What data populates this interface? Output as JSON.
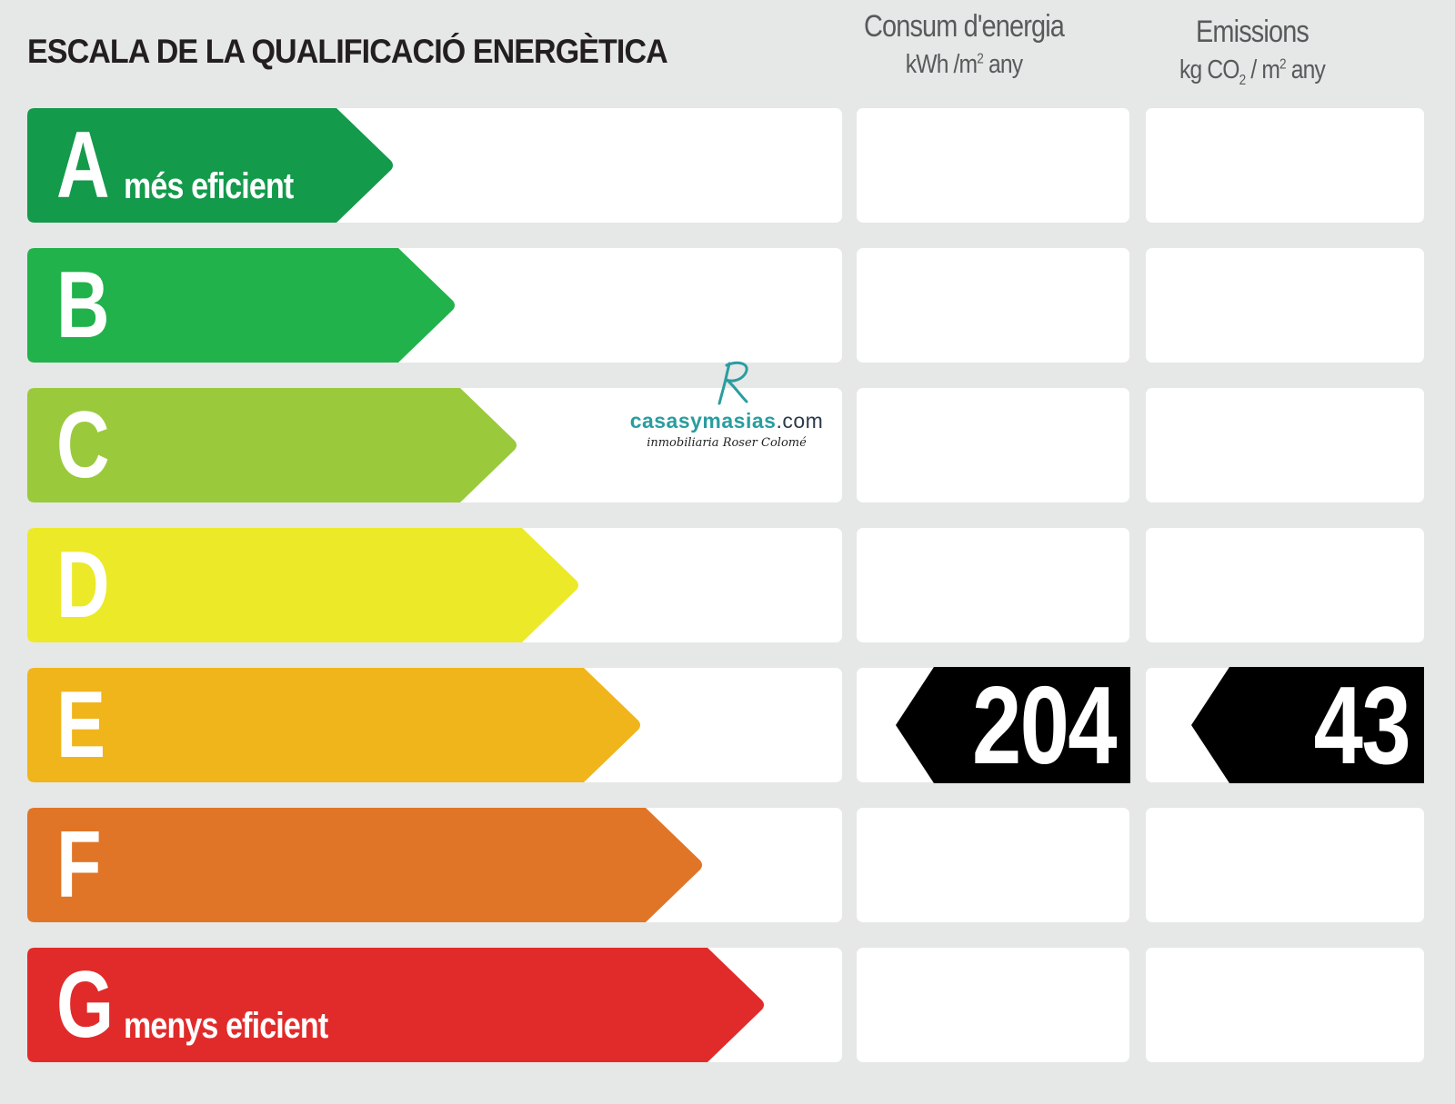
{
  "title": "ESCALA DE LA QUALIFICACIÓ ENERGÈTICA",
  "columns": {
    "energy": {
      "title": "Consum d'energia",
      "unit_prefix": "kWh /m",
      "unit_sup": "2",
      "unit_suffix": " any"
    },
    "emissions": {
      "title": "Emissions",
      "unit_prefix": "kg CO",
      "unit_sub": "2",
      "unit_mid": " / m",
      "unit_sup": "2",
      "unit_suffix": " any"
    }
  },
  "ratings": [
    {
      "letter": "A",
      "label": "més eficient",
      "color": "#139a4b"
    },
    {
      "letter": "B",
      "label": "",
      "color": "#21b24b"
    },
    {
      "letter": "C",
      "label": "",
      "color": "#9aca3c"
    },
    {
      "letter": "D",
      "label": "",
      "color": "#ece929"
    },
    {
      "letter": "E",
      "label": "",
      "color": "#f0b51b"
    },
    {
      "letter": "F",
      "label": "",
      "color": "#e07528"
    },
    {
      "letter": "G",
      "label": "menys eficient",
      "color": "#e12b2b"
    }
  ],
  "current": {
    "rating": "E",
    "energy_value": "204",
    "emissions_value": "43",
    "indicator_color": "#000000"
  },
  "watermark": {
    "brand_main": "casasymasias",
    "brand_tld": ".com",
    "tagline": "inmobiliaria Roser Colomé",
    "mark": "R",
    "color": "#2a9d9f"
  }
}
